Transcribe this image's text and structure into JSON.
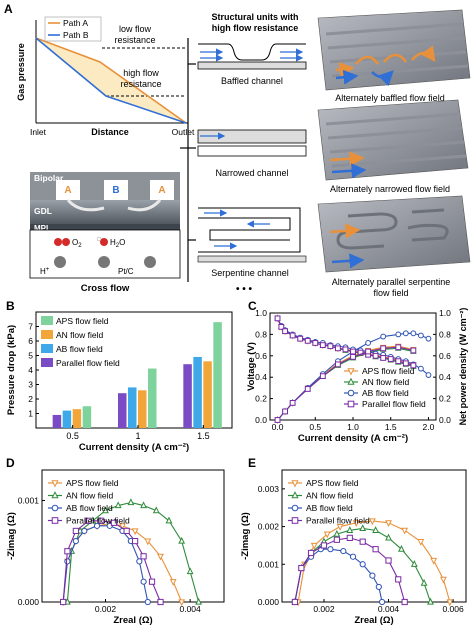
{
  "panels": {
    "A": {
      "letter": "A",
      "legend": [
        "Path A",
        "Path B"
      ],
      "low_flow": "low flow\nresistance",
      "high_flow": "high flow\nresistance",
      "ylabel": "Gas pressure",
      "xlabel": "Distance",
      "xticks": [
        "Inlet",
        "Outlet"
      ],
      "struct_title": "Structural units with\nhigh flow resistance",
      "channels": [
        "Baffled channel",
        "Narrowed channel",
        "Serpentine channel"
      ],
      "ellipsis": "• • •",
      "flow_fields": [
        "Alternately baffled flow field",
        "Alternately narrowed flow field",
        "Alternately parallel serpentine\nflow field"
      ],
      "cross_flow_title": "Cross flow",
      "cross_labels": {
        "bipolar": "Bipolar",
        "a1": "A",
        "b": "B",
        "a2": "A",
        "gdl": "GDL",
        "mpl": "MPL",
        "o2": "O",
        "o2_sub": "2",
        "h2o": "H",
        "h2o_sub": "2",
        "h2o_end": "O",
        "hplus": "H",
        "hplus_sup": "+",
        "ptc": "Pt/C"
      }
    },
    "B_letter": "B",
    "C_letter": "C",
    "D_letter": "D",
    "E_letter": "E"
  },
  "colors": {
    "APS": "#e8913a",
    "AN": "#2e8b3a",
    "AB": "#2f54b5",
    "Parallel": "#7b2aa5",
    "barAPS": "#7ed39c",
    "barAN": "#f2a63a",
    "barAB": "#3ea8e8",
    "barParallel": "#7a4bc4"
  },
  "chart_data": [
    {
      "panel": "B",
      "type": "bar",
      "categories": [
        "0.5",
        "1",
        "1.5"
      ],
      "series": [
        {
          "name": "Parallel flow field",
          "values": [
            0.9,
            2.4,
            4.4
          ]
        },
        {
          "name": "AB flow field",
          "values": [
            1.2,
            2.8,
            4.9
          ]
        },
        {
          "name": "AN flow field",
          "values": [
            1.3,
            2.6,
            4.6
          ]
        },
        {
          "name": "APS flow field",
          "values": [
            1.5,
            4.1,
            7.3
          ]
        }
      ],
      "legend_order": [
        "APS flow field",
        "AN flow field",
        "AB flow field",
        "Parallel flow field"
      ],
      "xlabel": "Current density (A cm⁻²)",
      "ylabel": "Pressure drop (kPa)",
      "ylim": [
        0,
        8
      ],
      "yticks": [
        "1",
        "2",
        "3",
        "4",
        "5",
        "6",
        "7"
      ],
      "legend": "top-left"
    },
    {
      "panel": "C",
      "type": "line",
      "xlabel": "Current density (A cm⁻²)",
      "ylabel": "Voltage (V)",
      "ylabel2": "Net power density (W cm⁻²)",
      "xlim": [
        -0.1,
        2.1
      ],
      "ylim": [
        0,
        1.0
      ],
      "y2lim": [
        0,
        1.0
      ],
      "xticks": [
        "0.0",
        "0.5",
        "1.0",
        "1.5",
        "2.0"
      ],
      "yticks": [
        "0.0",
        "0.2",
        "0.4",
        "0.6",
        "0.8",
        "1.0"
      ],
      "y2ticks": [
        "0.0",
        "0.2",
        "0.4",
        "0.6",
        "0.8",
        "1.0"
      ],
      "legend": "bottom-right",
      "series": [
        {
          "name": "APS flow field",
          "marker": "triangle-down",
          "voltage": {
            "x": [
              0.0,
              0.05,
              0.1,
              0.2,
              0.3,
              0.4,
              0.5,
              0.6,
              0.7,
              0.8,
              0.9,
              1.0,
              1.1,
              1.2,
              1.3,
              1.4,
              1.5,
              1.6,
              1.7,
              1.8
            ],
            "y": [
              0.95,
              0.87,
              0.83,
              0.79,
              0.76,
              0.74,
              0.72,
              0.7,
              0.69,
              0.67,
              0.66,
              0.65,
              0.63,
              0.62,
              0.61,
              0.59,
              0.58,
              0.56,
              0.54,
              0.52
            ]
          },
          "power": {
            "x": [
              0.0,
              0.1,
              0.2,
              0.4,
              0.6,
              0.8,
              1.0,
              1.2,
              1.4,
              1.6,
              1.8
            ],
            "y": [
              0.0,
              0.08,
              0.16,
              0.3,
              0.42,
              0.53,
              0.6,
              0.65,
              0.68,
              0.69,
              0.66
            ]
          }
        },
        {
          "name": "AN flow field",
          "marker": "triangle-up",
          "voltage": {
            "x": [
              0.0,
              0.05,
              0.1,
              0.2,
              0.3,
              0.4,
              0.5,
              0.6,
              0.7,
              0.8,
              0.9,
              1.0,
              1.1,
              1.2,
              1.3,
              1.4,
              1.5,
              1.6,
              1.7,
              1.8
            ],
            "y": [
              0.95,
              0.87,
              0.83,
              0.79,
              0.76,
              0.74,
              0.72,
              0.7,
              0.69,
              0.67,
              0.65,
              0.64,
              0.62,
              0.61,
              0.59,
              0.58,
              0.56,
              0.54,
              0.52,
              0.5
            ]
          },
          "power": {
            "x": [
              0.0,
              0.1,
              0.2,
              0.4,
              0.6,
              0.8,
              1.0,
              1.2,
              1.4,
              1.6,
              1.8
            ],
            "y": [
              0.0,
              0.08,
              0.16,
              0.29,
              0.41,
              0.51,
              0.58,
              0.63,
              0.66,
              0.67,
              0.64
            ]
          }
        },
        {
          "name": "AB flow field",
          "marker": "circle",
          "voltage": {
            "x": [
              0.0,
              0.05,
              0.1,
              0.2,
              0.3,
              0.4,
              0.5,
              0.6,
              0.7,
              0.8,
              0.9,
              1.0,
              1.1,
              1.2,
              1.3,
              1.4,
              1.5,
              1.6,
              1.7,
              1.8,
              1.9,
              2.0
            ],
            "y": [
              0.95,
              0.88,
              0.84,
              0.8,
              0.77,
              0.75,
              0.73,
              0.72,
              0.7,
              0.69,
              0.68,
              0.66,
              0.65,
              0.64,
              0.62,
              0.61,
              0.59,
              0.57,
              0.55,
              0.52,
              0.48,
              0.42
            ]
          },
          "power": {
            "x": [
              0.0,
              0.1,
              0.2,
              0.4,
              0.6,
              0.8,
              1.0,
              1.2,
              1.4,
              1.6,
              1.7,
              1.8,
              1.9,
              2.0
            ],
            "y": [
              0.0,
              0.08,
              0.16,
              0.3,
              0.43,
              0.55,
              0.64,
              0.72,
              0.78,
              0.8,
              0.81,
              0.81,
              0.79,
              0.76
            ]
          }
        },
        {
          "name": "Parallel flow field",
          "marker": "square",
          "voltage": {
            "x": [
              0.0,
              0.05,
              0.1,
              0.2,
              0.3,
              0.4,
              0.5,
              0.6,
              0.7,
              0.8,
              0.9,
              1.0,
              1.1,
              1.2,
              1.3,
              1.4,
              1.5,
              1.6,
              1.7,
              1.8
            ],
            "y": [
              0.95,
              0.87,
              0.83,
              0.79,
              0.76,
              0.74,
              0.72,
              0.7,
              0.69,
              0.67,
              0.66,
              0.64,
              0.63,
              0.61,
              0.6,
              0.58,
              0.57,
              0.55,
              0.53,
              0.51
            ]
          },
          "power": {
            "x": [
              0.0,
              0.1,
              0.2,
              0.4,
              0.6,
              0.8,
              1.0,
              1.2,
              1.4,
              1.6,
              1.8
            ],
            "y": [
              0.0,
              0.08,
              0.16,
              0.29,
              0.41,
              0.52,
              0.59,
              0.64,
              0.67,
              0.68,
              0.65
            ]
          }
        }
      ]
    },
    {
      "panel": "D",
      "type": "line",
      "xlabel": "Zreal (Ω)",
      "ylabel": "-Zimag (Ω)",
      "xlim": [
        0.0005,
        0.0048
      ],
      "ylim": [
        0,
        0.0013
      ],
      "xticks": [
        "0.002",
        "0.004"
      ],
      "yticks": [
        "0.000",
        "0.001"
      ],
      "legend": "top-left",
      "series": [
        {
          "name": "APS flow field",
          "marker": "triangle-down",
          "x": [
            0.001,
            0.0011,
            0.0013,
            0.0015,
            0.0018,
            0.0021,
            0.0024,
            0.0027,
            0.003,
            0.0033,
            0.0036,
            0.0038
          ],
          "y": [
            0.0,
            0.0004,
            0.0006,
            0.0007,
            0.00075,
            0.00077,
            0.00075,
            0.0007,
            0.0006,
            0.00045,
            0.0002,
            0.0
          ]
        },
        {
          "name": "AN flow field",
          "marker": "triangle-up",
          "x": [
            0.0011,
            0.0012,
            0.0014,
            0.0017,
            0.002,
            0.0023,
            0.0026,
            0.0029,
            0.0032,
            0.0035,
            0.0038,
            0.004,
            0.0042
          ],
          "y": [
            0.0,
            0.0005,
            0.0007,
            0.0008,
            0.0009,
            0.00095,
            0.00098,
            0.00095,
            0.0009,
            0.0008,
            0.0006,
            0.0003,
            0.0
          ]
        },
        {
          "name": "AB flow field",
          "marker": "circle",
          "x": [
            0.001,
            0.0011,
            0.0013,
            0.0015,
            0.0018,
            0.0021,
            0.0024,
            0.0026,
            0.0028,
            0.0029,
            0.003
          ],
          "y": [
            0.0,
            0.0004,
            0.0006,
            0.0007,
            0.00075,
            0.00075,
            0.0007,
            0.0006,
            0.0004,
            0.0002,
            0.0
          ]
        },
        {
          "name": "Parallel flow field",
          "marker": "square",
          "x": [
            0.001,
            0.0011,
            0.0013,
            0.0016,
            0.0019,
            0.0022,
            0.0025,
            0.0027,
            0.0029,
            0.0031,
            0.0033
          ],
          "y": [
            0.0,
            0.0005,
            0.0007,
            0.0008,
            0.0008,
            0.00078,
            0.0007,
            0.0006,
            0.00045,
            0.0002,
            0.0
          ]
        }
      ]
    },
    {
      "panel": "E",
      "type": "line",
      "xlabel": "Zreal (Ω)",
      "ylabel": "-Zimag (Ω)",
      "xlim": [
        0.0007,
        0.0064
      ],
      "ylim": [
        0,
        0.0035
      ],
      "xticks": [
        "0.002",
        "0.004",
        "0.006"
      ],
      "yticks": [
        "0.000",
        "0.001",
        "0.002",
        "0.003"
      ],
      "legend": "top-left",
      "series": [
        {
          "name": "APS flow field",
          "marker": "triangle-down",
          "x": [
            0.0012,
            0.0014,
            0.0017,
            0.0021,
            0.0025,
            0.003,
            0.0035,
            0.004,
            0.0045,
            0.005,
            0.0054,
            0.0057,
            0.0059
          ],
          "y": [
            0.0,
            0.001,
            0.0015,
            0.0018,
            0.002,
            0.0021,
            0.00215,
            0.0021,
            0.0019,
            0.0016,
            0.0011,
            0.0006,
            0.0
          ]
        },
        {
          "name": "AN flow field",
          "marker": "triangle-up",
          "x": [
            0.0011,
            0.0013,
            0.0016,
            0.002,
            0.0024,
            0.0028,
            0.0032,
            0.0036,
            0.004,
            0.0044,
            0.0048,
            0.0051,
            0.0053
          ],
          "y": [
            0.0,
            0.0009,
            0.0013,
            0.0016,
            0.0018,
            0.0019,
            0.00195,
            0.0019,
            0.0017,
            0.0014,
            0.001,
            0.0005,
            0.0
          ]
        },
        {
          "name": "AB flow field",
          "marker": "circle",
          "x": [
            0.0011,
            0.0013,
            0.0016,
            0.0019,
            0.0022,
            0.0026,
            0.0029,
            0.0032,
            0.0035,
            0.0037,
            0.0038
          ],
          "y": [
            0.0,
            0.0009,
            0.0012,
            0.0014,
            0.0014,
            0.00135,
            0.0012,
            0.001,
            0.0007,
            0.0004,
            0.0
          ]
        },
        {
          "name": "Parallel flow field",
          "marker": "square",
          "x": [
            0.0011,
            0.0013,
            0.0016,
            0.002,
            0.0024,
            0.0028,
            0.0032,
            0.0036,
            0.004,
            0.0043,
            0.0045
          ],
          "y": [
            0.0,
            0.0009,
            0.0013,
            0.0015,
            0.00165,
            0.0017,
            0.0016,
            0.0014,
            0.0011,
            0.0006,
            0.0
          ]
        }
      ]
    }
  ]
}
